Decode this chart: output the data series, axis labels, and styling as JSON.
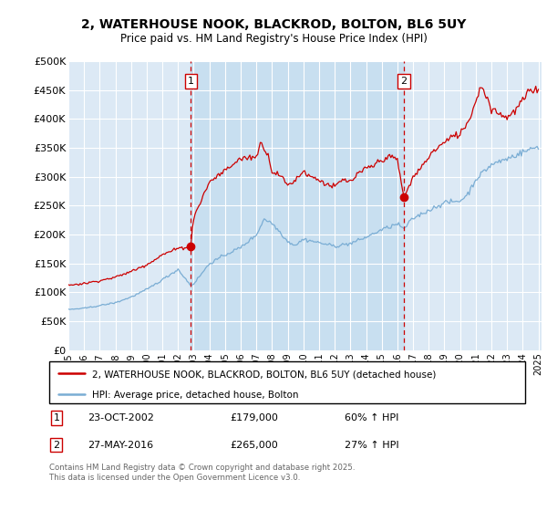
{
  "title": "2, WATERHOUSE NOOK, BLACKROD, BOLTON, BL6 5UY",
  "subtitle": "Price paid vs. HM Land Registry's House Price Index (HPI)",
  "legend_property": "2, WATERHOUSE NOOK, BLACKROD, BOLTON, BL6 5UY (detached house)",
  "legend_hpi": "HPI: Average price, detached house, Bolton",
  "sale1_date": "23-OCT-2002",
  "sale1_price": 179000,
  "sale1_label": "60% ↑ HPI",
  "sale2_date": "27-MAY-2016",
  "sale2_price": 265000,
  "sale2_label": "27% ↑ HPI",
  "footer": "Contains HM Land Registry data © Crown copyright and database right 2025.\nThis data is licensed under the Open Government Licence v3.0.",
  "property_color": "#cc0000",
  "hpi_color": "#7aadd4",
  "background_color": "#dce9f5",
  "shade_color": "#c8dff0",
  "sale_vline_color": "#cc0000",
  "ylim": [
    0,
    500000
  ],
  "yticks": [
    0,
    50000,
    100000,
    150000,
    200000,
    250000,
    300000,
    350000,
    400000,
    450000,
    500000
  ],
  "sale1_x": 2002.808,
  "sale2_x": 2016.41,
  "sale1_y": 179000,
  "sale2_y": 265000,
  "xtick_years": [
    1995,
    1996,
    1997,
    1998,
    1999,
    2000,
    2001,
    2002,
    2003,
    2004,
    2005,
    2006,
    2007,
    2008,
    2009,
    2010,
    2011,
    2012,
    2013,
    2014,
    2015,
    2016,
    2017,
    2018,
    2019,
    2020,
    2021,
    2022,
    2023,
    2024,
    2025
  ]
}
